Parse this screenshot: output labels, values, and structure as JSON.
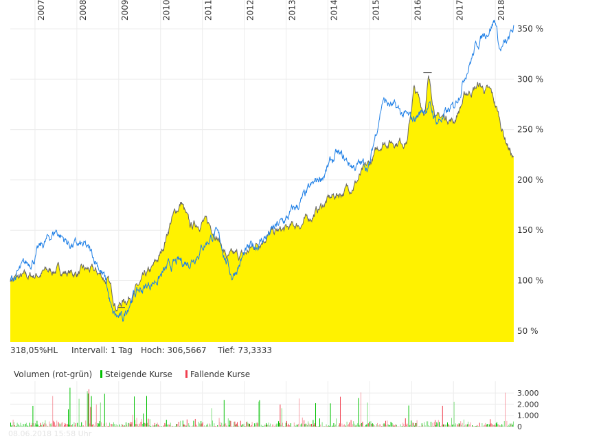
{
  "chart_data": {
    "type": "area",
    "x_ticks": [
      "2007",
      "2008",
      "2009",
      "2010",
      "2011",
      "2012",
      "2013",
      "2014",
      "2015",
      "2016",
      "2017",
      "2018"
    ],
    "y_ticks": [
      "50 %",
      "100 %",
      "150 %",
      "200 %",
      "250 %",
      "300 %",
      "350 %"
    ],
    "ylim": [
      40,
      370
    ],
    "xlim": [
      2006.41,
      2018.44
    ],
    "grid": true,
    "series": [
      {
        "color": "#666666",
        "fill": "#fff200",
        "points": [
          [
            2006.41,
            102
          ],
          [
            2006.8,
            103
          ],
          [
            2007.2,
            108
          ],
          [
            2007.5,
            111
          ],
          [
            2007.9,
            107
          ],
          [
            2008.3,
            110
          ],
          [
            2008.6,
            105
          ],
          [
            2008.75,
            98
          ],
          [
            2008.95,
            75
          ],
          [
            2009.2,
            82
          ],
          [
            2009.5,
            95
          ],
          [
            2009.8,
            110
          ],
          [
            2010.0,
            125
          ],
          [
            2010.25,
            160
          ],
          [
            2010.5,
            178
          ],
          [
            2010.7,
            152
          ],
          [
            2011.0,
            160
          ],
          [
            2011.3,
            150
          ],
          [
            2011.6,
            122
          ],
          [
            2012.0,
            125
          ],
          [
            2012.5,
            145
          ],
          [
            2013.0,
            150
          ],
          [
            2013.5,
            160
          ],
          [
            2014.0,
            180
          ],
          [
            2014.5,
            192
          ],
          [
            2014.7,
            200
          ],
          [
            2015.0,
            215
          ],
          [
            2015.3,
            238
          ],
          [
            2015.9,
            240
          ],
          [
            2016.05,
            290
          ],
          [
            2016.3,
            268
          ],
          [
            2016.4,
            300
          ],
          [
            2016.6,
            262
          ],
          [
            2016.9,
            262
          ],
          [
            2017.0,
            258
          ],
          [
            2017.3,
            285
          ],
          [
            2017.6,
            294
          ],
          [
            2017.9,
            285
          ],
          [
            2018.05,
            268
          ],
          [
            2018.2,
            246
          ],
          [
            2018.44,
            220
          ]
        ]
      },
      {
        "color": "#1e7fe6",
        "points": [
          [
            2006.41,
            100
          ],
          [
            2006.8,
            115
          ],
          [
            2007.0,
            125
          ],
          [
            2007.3,
            140
          ],
          [
            2007.5,
            150
          ],
          [
            2007.8,
            137
          ],
          [
            2008.2,
            132
          ],
          [
            2008.5,
            118
          ],
          [
            2008.7,
            98
          ],
          [
            2008.85,
            65
          ],
          [
            2009.1,
            60
          ],
          [
            2009.3,
            85
          ],
          [
            2009.7,
            95
          ],
          [
            2010.0,
            105
          ],
          [
            2010.3,
            115
          ],
          [
            2010.7,
            120
          ],
          [
            2011.0,
            135
          ],
          [
            2011.3,
            148
          ],
          [
            2011.5,
            130
          ],
          [
            2011.7,
            105
          ],
          [
            2012.0,
            125
          ],
          [
            2012.4,
            140
          ],
          [
            2013.0,
            160
          ],
          [
            2013.5,
            185
          ],
          [
            2014.0,
            212
          ],
          [
            2014.2,
            224
          ],
          [
            2014.6,
            214
          ],
          [
            2015.0,
            215
          ],
          [
            2015.3,
            280
          ],
          [
            2015.6,
            270
          ],
          [
            2016.0,
            258
          ],
          [
            2016.4,
            275
          ],
          [
            2016.6,
            258
          ],
          [
            2017.0,
            270
          ],
          [
            2017.3,
            310
          ],
          [
            2017.6,
            338
          ],
          [
            2018.0,
            360
          ],
          [
            2018.1,
            330
          ],
          [
            2018.3,
            335
          ],
          [
            2018.44,
            350
          ]
        ]
      }
    ],
    "volume": {
      "title": "Volumen (rot-grün)",
      "rising_label": "Steigende Kurse",
      "falling_label": "Fallende Kurse",
      "rising_color": "#00c000",
      "falling_color": "#f04050",
      "y_ticks": [
        "0",
        "1.000",
        "2.000",
        "3.000"
      ]
    }
  },
  "info": {
    "hl": "318,05%HL",
    "interval": "Intervall: 1 Tag",
    "high": "Hoch: 306,5667",
    "low": "Tief: 73,3333"
  },
  "timestamp": "08.06.2018 15:58 Uhr"
}
